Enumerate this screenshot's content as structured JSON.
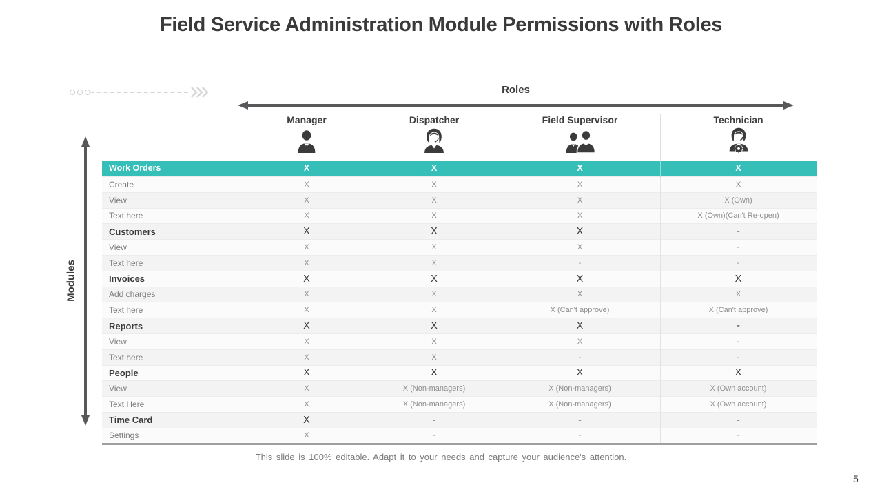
{
  "slide": {
    "title": "Field Service Administration Module Permissions with Roles",
    "footer_note": "This slide is 100% editable. Adapt it to your needs and capture your audience's attention.",
    "page_number": "5"
  },
  "axes": {
    "roles_label": "Roles",
    "modules_label": "Modules"
  },
  "colors": {
    "accent_teal": "#35bfb8",
    "arrow_gray": "#57585a",
    "icon_dark": "#3b3b3b",
    "deco_gray": "#d6d6d6"
  },
  "table": {
    "columns": [
      {
        "label": "Manager",
        "icon": "manager-icon"
      },
      {
        "label": "Dispatcher",
        "icon": "dispatcher-icon"
      },
      {
        "label": "Field Supervisor",
        "icon": "field-supervisor-icon"
      },
      {
        "label": "Technician",
        "icon": "technician-icon"
      }
    ],
    "rows": [
      {
        "label": "Work Orders",
        "type": "highlight",
        "values": [
          "X",
          "X",
          "X",
          "X"
        ]
      },
      {
        "label": "Create",
        "type": "sub",
        "values": [
          "X",
          "X",
          "X",
          "X"
        ]
      },
      {
        "label": "View",
        "type": "sub",
        "values": [
          "X",
          "X",
          "X",
          "X (Own)"
        ]
      },
      {
        "label": "Text here",
        "type": "sub",
        "values": [
          "X",
          "X",
          "X",
          "X (Own)(Can't Re-open)"
        ]
      },
      {
        "label": "Customers",
        "type": "group",
        "values": [
          "X",
          "X",
          "X",
          "-"
        ]
      },
      {
        "label": "View",
        "type": "sub",
        "values": [
          "X",
          "X",
          "X",
          "-"
        ]
      },
      {
        "label": "Text here",
        "type": "sub",
        "values": [
          "X",
          "X",
          "-",
          "-"
        ]
      },
      {
        "label": "Invoices",
        "type": "group",
        "values": [
          "X",
          "X",
          "X",
          "X"
        ]
      },
      {
        "label": "Add charges",
        "type": "sub",
        "values": [
          "X",
          "X",
          "X",
          "X"
        ]
      },
      {
        "label": "Text here",
        "type": "sub",
        "values": [
          "X",
          "X",
          "X (Can't approve)",
          "X (Can't approve)"
        ]
      },
      {
        "label": "Reports",
        "type": "group",
        "values": [
          "X",
          "X",
          "X",
          "-"
        ]
      },
      {
        "label": "View",
        "type": "sub",
        "values": [
          "X",
          "X",
          "X",
          "-"
        ]
      },
      {
        "label": "Text here",
        "type": "sub",
        "values": [
          "X",
          "X",
          "-",
          "-"
        ]
      },
      {
        "label": "People",
        "type": "group",
        "values": [
          "X",
          "X",
          "X",
          "X"
        ]
      },
      {
        "label": "View",
        "type": "sub",
        "values": [
          "X",
          "X (Non-managers)",
          "X (Non-managers)",
          "X (Own account)"
        ]
      },
      {
        "label": "Text Here",
        "type": "sub",
        "values": [
          "X",
          "X (Non-managers)",
          "X (Non-managers)",
          "X (Own account)"
        ]
      },
      {
        "label": "Time Card",
        "type": "group",
        "values": [
          "X",
          "-",
          "-",
          "-"
        ]
      },
      {
        "label": "Settings",
        "type": "sub",
        "values": [
          "X",
          "-",
          "-",
          "-"
        ]
      }
    ]
  }
}
